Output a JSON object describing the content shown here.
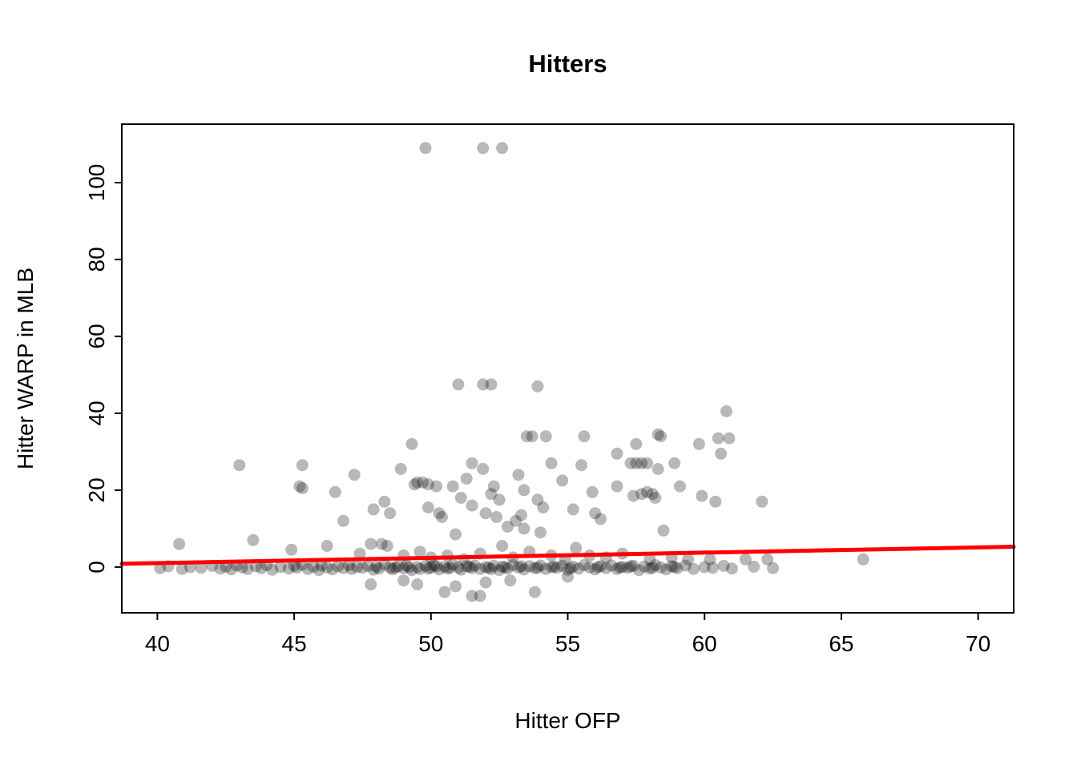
{
  "chart_data": {
    "type": "scatter",
    "title": "Hitters",
    "xlabel": "Hitter OFP",
    "ylabel": "Hitter WARP in MLB",
    "xlim": [
      38.7,
      71.3
    ],
    "ylim": [
      -11.9,
      115.2
    ],
    "x_ticks": [
      40,
      45,
      50,
      55,
      60,
      65,
      70
    ],
    "y_ticks": [
      0,
      20,
      40,
      60,
      80,
      100
    ],
    "grid": false,
    "legend": "none",
    "point_color": "rgba(0,0,0,0.28)",
    "point_radius": 7.5,
    "fit_line": {
      "x1": 38.7,
      "y1": 0.85,
      "x2": 71.3,
      "y2": 5.3,
      "color": "#FF0000",
      "width": 5
    },
    "points": [
      [
        49.8,
        109
      ],
      [
        51.9,
        109
      ],
      [
        52.6,
        109
      ],
      [
        51.0,
        47.5
      ],
      [
        51.9,
        47.5
      ],
      [
        52.2,
        47.5
      ],
      [
        53.9,
        47
      ],
      [
        60.8,
        40.5
      ],
      [
        53.5,
        34
      ],
      [
        53.7,
        34
      ],
      [
        54.2,
        34
      ],
      [
        55.6,
        34
      ],
      [
        58.3,
        34.5
      ],
      [
        58.4,
        34
      ],
      [
        60.5,
        33.5
      ],
      [
        49.3,
        32
      ],
      [
        57.5,
        32
      ],
      [
        59.8,
        32
      ],
      [
        60.9,
        33.5
      ],
      [
        56.8,
        29.5
      ],
      [
        60.6,
        29.5
      ],
      [
        43.0,
        26.5
      ],
      [
        45.3,
        26.5
      ],
      [
        51.5,
        27
      ],
      [
        54.4,
        27
      ],
      [
        55.5,
        26.5
      ],
      [
        57.3,
        27
      ],
      [
        57.5,
        27
      ],
      [
        57.7,
        27
      ],
      [
        57.9,
        27
      ],
      [
        58.9,
        27
      ],
      [
        58.3,
        25.5
      ],
      [
        51.9,
        25.5
      ],
      [
        48.9,
        25.5
      ],
      [
        45.2,
        21
      ],
      [
        45.3,
        20.5
      ],
      [
        46.5,
        19.5
      ],
      [
        47.2,
        24
      ],
      [
        49.4,
        21.5
      ],
      [
        49.5,
        22
      ],
      [
        49.7,
        22
      ],
      [
        49.9,
        21.5
      ],
      [
        50.2,
        21
      ],
      [
        50.8,
        21
      ],
      [
        51.3,
        23
      ],
      [
        52.3,
        21
      ],
      [
        53.2,
        24
      ],
      [
        53.4,
        20
      ],
      [
        54.8,
        22.5
      ],
      [
        55.9,
        19.5
      ],
      [
        56.8,
        21
      ],
      [
        57.4,
        18.5
      ],
      [
        57.7,
        19
      ],
      [
        57.9,
        19.5
      ],
      [
        58.1,
        19
      ],
      [
        58.2,
        18
      ],
      [
        59.1,
        21
      ],
      [
        59.9,
        18.5
      ],
      [
        60.4,
        17
      ],
      [
        62.1,
        17
      ],
      [
        48.3,
        17
      ],
      [
        51.1,
        18
      ],
      [
        52.2,
        19
      ],
      [
        52.5,
        17.5
      ],
      [
        53.9,
        17.5
      ],
      [
        46.8,
        12
      ],
      [
        47.9,
        15
      ],
      [
        48.5,
        14
      ],
      [
        49.9,
        15.5
      ],
      [
        50.3,
        14
      ],
      [
        50.4,
        13
      ],
      [
        51.5,
        16
      ],
      [
        52.0,
        14
      ],
      [
        52.4,
        13
      ],
      [
        53.1,
        12
      ],
      [
        53.3,
        13.5
      ],
      [
        54.1,
        15.5
      ],
      [
        55.2,
        15
      ],
      [
        56.2,
        12.5
      ],
      [
        52.8,
        10.5
      ],
      [
        58.5,
        9.5
      ],
      [
        50.9,
        8.5
      ],
      [
        53.4,
        10
      ],
      [
        54.0,
        9
      ],
      [
        56.0,
        14
      ],
      [
        40.8,
        6
      ],
      [
        43.5,
        7
      ],
      [
        44.9,
        4.5
      ],
      [
        46.2,
        5.5
      ],
      [
        47.4,
        3.5
      ],
      [
        47.8,
        6
      ],
      [
        48.2,
        6
      ],
      [
        48.4,
        5.5
      ],
      [
        49.0,
        3
      ],
      [
        49.6,
        4
      ],
      [
        50.0,
        2.5
      ],
      [
        50.6,
        3
      ],
      [
        51.2,
        2
      ],
      [
        51.8,
        3.5
      ],
      [
        52.6,
        5.5
      ],
      [
        53.0,
        2.5
      ],
      [
        53.6,
        4
      ],
      [
        54.4,
        3
      ],
      [
        54.9,
        2
      ],
      [
        55.3,
        5
      ],
      [
        55.8,
        3
      ],
      [
        56.4,
        2.5
      ],
      [
        57.0,
        3.5
      ],
      [
        58.0,
        2
      ],
      [
        58.8,
        2.5
      ],
      [
        59.4,
        2
      ],
      [
        60.2,
        2
      ],
      [
        61.5,
        2
      ],
      [
        62.3,
        2
      ],
      [
        65.8,
        2
      ],
      [
        47.8,
        -4.5
      ],
      [
        49.0,
        -3.5
      ],
      [
        50.5,
        -6.5
      ],
      [
        50.9,
        -5
      ],
      [
        51.5,
        -7.5
      ],
      [
        51.8,
        -7.5
      ],
      [
        52.0,
        -4
      ],
      [
        53.8,
        -6.5
      ],
      [
        52.9,
        -3.5
      ],
      [
        55.0,
        -2.5
      ],
      [
        49.5,
        -4.5
      ],
      [
        40.1,
        -0.3
      ],
      [
        40.4,
        0.2
      ],
      [
        40.9,
        -0.5
      ],
      [
        41.2,
        0
      ],
      [
        41.6,
        -0.2
      ],
      [
        42.0,
        0.3
      ],
      [
        42.3,
        -0.4
      ],
      [
        42.5,
        0.1
      ],
      [
        42.7,
        -0.6
      ],
      [
        42.9,
        0.4
      ],
      [
        43.1,
        -0.1
      ],
      [
        43.3,
        -0.5
      ],
      [
        43.6,
        0.2
      ],
      [
        43.8,
        -0.3
      ],
      [
        44.0,
        0.5
      ],
      [
        44.2,
        -0.7
      ],
      [
        44.5,
        0
      ],
      [
        44.8,
        -0.4
      ],
      [
        45.0,
        0.3
      ],
      [
        45.1,
        -0.2
      ],
      [
        45.3,
        0.6
      ],
      [
        45.5,
        -0.5
      ],
      [
        45.7,
        0.1
      ],
      [
        45.9,
        -0.8
      ],
      [
        46.0,
        0.4
      ],
      [
        46.2,
        -0.1
      ],
      [
        46.4,
        -0.6
      ],
      [
        46.6,
        0.2
      ],
      [
        46.8,
        -0.3
      ],
      [
        47.0,
        0.5
      ],
      [
        47.1,
        -0.5
      ],
      [
        47.3,
        0
      ],
      [
        47.5,
        -0.2
      ],
      [
        47.7,
        0.3
      ],
      [
        47.9,
        -0.7
      ],
      [
        48.0,
        0.1
      ],
      [
        48.1,
        -0.4
      ],
      [
        48.3,
        0.6
      ],
      [
        48.5,
        -0.1
      ],
      [
        48.6,
        -0.6
      ],
      [
        48.8,
        0.2
      ],
      [
        49.0,
        -0.3
      ],
      [
        49.1,
        0.4
      ],
      [
        49.3,
        -0.8
      ],
      [
        49.5,
        0
      ],
      [
        49.6,
        -0.5
      ],
      [
        49.8,
        0.3
      ],
      [
        50.0,
        -0.2
      ],
      [
        50.1,
        0.5
      ],
      [
        50.3,
        -0.6
      ],
      [
        50.5,
        0.1
      ],
      [
        50.6,
        -0.4
      ],
      [
        50.8,
        0.6
      ],
      [
        51.0,
        -0.1
      ],
      [
        51.1,
        -0.7
      ],
      [
        51.3,
        0.2
      ],
      [
        51.5,
        -0.3
      ],
      [
        51.6,
        0.4
      ],
      [
        51.8,
        -0.5
      ],
      [
        52.0,
        0
      ],
      [
        52.1,
        -0.2
      ],
      [
        52.3,
        0.3
      ],
      [
        52.5,
        -0.8
      ],
      [
        52.6,
        0.1
      ],
      [
        52.8,
        -0.4
      ],
      [
        53.0,
        0.5
      ],
      [
        53.2,
        -0.1
      ],
      [
        53.4,
        -0.6
      ],
      [
        53.6,
        0.2
      ],
      [
        53.8,
        -0.3
      ],
      [
        54.0,
        0.4
      ],
      [
        54.2,
        -0.5
      ],
      [
        54.4,
        0
      ],
      [
        54.6,
        -0.2
      ],
      [
        54.8,
        0.3
      ],
      [
        55.0,
        -0.7
      ],
      [
        55.2,
        0.1
      ],
      [
        55.4,
        -0.4
      ],
      [
        55.6,
        0.5
      ],
      [
        55.8,
        -0.1
      ],
      [
        56.0,
        -0.6
      ],
      [
        56.2,
        0.2
      ],
      [
        56.4,
        -0.3
      ],
      [
        56.6,
        0.4
      ],
      [
        56.8,
        -0.5
      ],
      [
        57.0,
        0
      ],
      [
        57.2,
        -0.2
      ],
      [
        57.4,
        0.3
      ],
      [
        57.6,
        -0.8
      ],
      [
        57.8,
        0.1
      ],
      [
        58.0,
        -0.4
      ],
      [
        58.2,
        0.5
      ],
      [
        58.4,
        -0.1
      ],
      [
        58.6,
        -0.6
      ],
      [
        58.8,
        0.2
      ],
      [
        59.0,
        -0.3
      ],
      [
        59.3,
        0.4
      ],
      [
        59.6,
        -0.5
      ],
      [
        60.0,
        0
      ],
      [
        60.3,
        -0.2
      ],
      [
        60.7,
        0.3
      ],
      [
        61.0,
        -0.4
      ],
      [
        61.8,
        0.1
      ],
      [
        62.5,
        -0.3
      ],
      [
        48.7,
        -0.1
      ],
      [
        49.2,
        0
      ],
      [
        49.9,
        -0.4
      ],
      [
        50.2,
        0.2
      ],
      [
        50.7,
        -0.2
      ],
      [
        51.4,
        0.1
      ],
      [
        52.2,
        -0.5
      ],
      [
        52.7,
        0
      ],
      [
        53.3,
        0.2
      ],
      [
        53.9,
        -0.2
      ],
      [
        54.5,
        0.1
      ],
      [
        55.1,
        -0.3
      ],
      [
        56.1,
        0
      ],
      [
        56.9,
        -0.1
      ],
      [
        57.3,
        0.2
      ],
      [
        58.1,
        -0.2
      ],
      [
        58.9,
        0
      ]
    ]
  }
}
